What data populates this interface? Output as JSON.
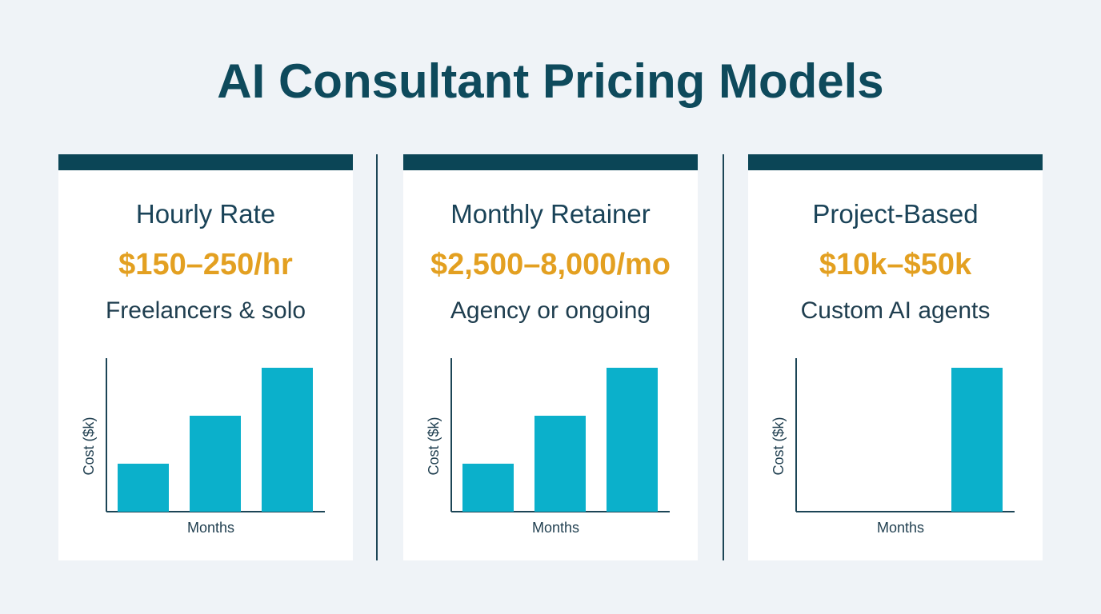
{
  "title": "AI Consultant Pricing Models",
  "colors": {
    "background": "#eff3f7",
    "title": "#0e4a5c",
    "header_bar": "#0b4556",
    "price": "#e3a021",
    "bar": "#0bb0cb",
    "axis": "#1c4556"
  },
  "cards": [
    {
      "heading": "Hourly Rate",
      "price": "$150–250/hr",
      "description": "Freelancers & solo"
    },
    {
      "heading": "Monthly Retainer",
      "price": "$2,500–8,000/mo",
      "description": "Agency or ongoing"
    },
    {
      "heading": "Project-Based",
      "price": "$10k–$50k",
      "description": "Custom AI agents"
    }
  ],
  "chart_data": [
    {
      "type": "bar",
      "xlabel": "Months",
      "ylabel": "Cost ($k)",
      "categories": [
        "",
        "",
        ""
      ],
      "values": [
        1,
        2,
        3
      ],
      "ylim": [
        0,
        3.2
      ],
      "grid": false
    },
    {
      "type": "bar",
      "xlabel": "Months",
      "ylabel": "Cost ($k)",
      "categories": [
        "",
        "",
        ""
      ],
      "values": [
        1,
        2,
        3
      ],
      "ylim": [
        0,
        3.2
      ],
      "grid": false
    },
    {
      "type": "bar",
      "xlabel": "Months",
      "ylabel": "Cost ($k)",
      "categories": [
        "",
        "",
        ""
      ],
      "values": [
        0,
        0,
        3
      ],
      "ylim": [
        0,
        3.2
      ],
      "grid": false
    }
  ]
}
